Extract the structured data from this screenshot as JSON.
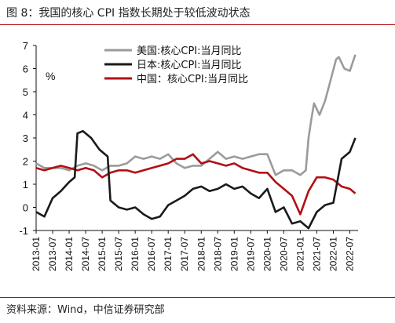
{
  "figure": {
    "title": "图 8：我国的核心 CPI 指数长期处于较低波动状态",
    "source": "资料来源：Wind，中信证券研究部"
  },
  "chart_data": {
    "type": "line",
    "unit_label": "%",
    "ylim": [
      -1,
      7
    ],
    "y_ticks": [
      -1,
      0,
      1,
      2,
      3,
      4,
      5,
      6,
      7
    ],
    "x_range": [
      "2013-01",
      "2022-10"
    ],
    "x_ticks": [
      "2013-01",
      "2013-07",
      "2014-01",
      "2014-07",
      "2015-01",
      "2015-07",
      "2016-01",
      "2016-07",
      "2017-01",
      "2017-07",
      "2018-01",
      "2018-07",
      "2019-01",
      "2019-07",
      "2020-01",
      "2020-07",
      "2021-01",
      "2021-07",
      "2022-01",
      "2022-07"
    ],
    "legend_position": "top-right",
    "grid": false,
    "series": [
      {
        "name": "美国:核心CPI:当月同比",
        "color": "#9b9b9b",
        "points": [
          [
            "2013-01",
            1.9
          ],
          [
            "2013-04",
            1.7
          ],
          [
            "2013-07",
            1.7
          ],
          [
            "2013-10",
            1.7
          ],
          [
            "2014-01",
            1.6
          ],
          [
            "2014-04",
            1.8
          ],
          [
            "2014-07",
            1.9
          ],
          [
            "2014-10",
            1.8
          ],
          [
            "2015-01",
            1.6
          ],
          [
            "2015-04",
            1.8
          ],
          [
            "2015-07",
            1.8
          ],
          [
            "2015-10",
            1.9
          ],
          [
            "2016-01",
            2.2
          ],
          [
            "2016-04",
            2.1
          ],
          [
            "2016-07",
            2.2
          ],
          [
            "2016-10",
            2.1
          ],
          [
            "2017-01",
            2.3
          ],
          [
            "2017-04",
            1.9
          ],
          [
            "2017-07",
            1.7
          ],
          [
            "2017-10",
            1.8
          ],
          [
            "2018-01",
            1.8
          ],
          [
            "2018-04",
            2.1
          ],
          [
            "2018-07",
            2.4
          ],
          [
            "2018-10",
            2.1
          ],
          [
            "2019-01",
            2.2
          ],
          [
            "2019-04",
            2.1
          ],
          [
            "2019-07",
            2.2
          ],
          [
            "2019-10",
            2.3
          ],
          [
            "2020-01",
            2.3
          ],
          [
            "2020-04",
            1.4
          ],
          [
            "2020-07",
            1.6
          ],
          [
            "2020-10",
            1.6
          ],
          [
            "2021-01",
            1.4
          ],
          [
            "2021-03",
            1.6
          ],
          [
            "2021-04",
            3.0
          ],
          [
            "2021-05",
            3.8
          ],
          [
            "2021-06",
            4.5
          ],
          [
            "2021-08",
            4.0
          ],
          [
            "2021-10",
            4.6
          ],
          [
            "2021-12",
            5.5
          ],
          [
            "2022-02",
            6.4
          ],
          [
            "2022-03",
            6.5
          ],
          [
            "2022-05",
            6.0
          ],
          [
            "2022-07",
            5.9
          ],
          [
            "2022-09",
            6.6
          ]
        ]
      },
      {
        "name": "日本:核心CPI:当月同比",
        "color": "#1a1a1a",
        "points": [
          [
            "2013-01",
            -0.2
          ],
          [
            "2013-04",
            -0.4
          ],
          [
            "2013-07",
            0.4
          ],
          [
            "2013-10",
            0.7
          ],
          [
            "2014-01",
            1.1
          ],
          [
            "2014-03",
            1.3
          ],
          [
            "2014-04",
            3.2
          ],
          [
            "2014-06",
            3.3
          ],
          [
            "2014-09",
            3.0
          ],
          [
            "2014-12",
            2.5
          ],
          [
            "2015-03",
            2.2
          ],
          [
            "2015-04",
            0.3
          ],
          [
            "2015-07",
            0.0
          ],
          [
            "2015-10",
            -0.1
          ],
          [
            "2016-01",
            0.0
          ],
          [
            "2016-04",
            -0.3
          ],
          [
            "2016-07",
            -0.5
          ],
          [
            "2016-10",
            -0.4
          ],
          [
            "2017-01",
            0.1
          ],
          [
            "2017-04",
            0.3
          ],
          [
            "2017-07",
            0.5
          ],
          [
            "2017-10",
            0.8
          ],
          [
            "2018-01",
            0.9
          ],
          [
            "2018-04",
            0.7
          ],
          [
            "2018-07",
            0.8
          ],
          [
            "2018-10",
            1.0
          ],
          [
            "2019-01",
            0.8
          ],
          [
            "2019-04",
            0.9
          ],
          [
            "2019-07",
            0.6
          ],
          [
            "2019-10",
            0.4
          ],
          [
            "2020-01",
            0.8
          ],
          [
            "2020-04",
            -0.2
          ],
          [
            "2020-07",
            0.0
          ],
          [
            "2020-10",
            -0.7
          ],
          [
            "2021-01",
            -0.6
          ],
          [
            "2021-04",
            -0.9
          ],
          [
            "2021-07",
            -0.2
          ],
          [
            "2021-10",
            0.1
          ],
          [
            "2022-01",
            0.2
          ],
          [
            "2022-04",
            2.1
          ],
          [
            "2022-07",
            2.4
          ],
          [
            "2022-09",
            3.0
          ]
        ]
      },
      {
        "name": "中国：核心CPI:当月同比",
        "color": "#b10f14",
        "points": [
          [
            "2013-01",
            1.7
          ],
          [
            "2013-04",
            1.6
          ],
          [
            "2013-07",
            1.7
          ],
          [
            "2013-10",
            1.8
          ],
          [
            "2014-01",
            1.7
          ],
          [
            "2014-04",
            1.6
          ],
          [
            "2014-07",
            1.7
          ],
          [
            "2014-10",
            1.6
          ],
          [
            "2015-01",
            1.3
          ],
          [
            "2015-04",
            1.5
          ],
          [
            "2015-07",
            1.6
          ],
          [
            "2015-10",
            1.6
          ],
          [
            "2016-01",
            1.5
          ],
          [
            "2016-04",
            1.6
          ],
          [
            "2016-07",
            1.7
          ],
          [
            "2016-10",
            1.8
          ],
          [
            "2017-01",
            1.9
          ],
          [
            "2017-04",
            2.1
          ],
          [
            "2017-07",
            2.1
          ],
          [
            "2017-10",
            2.3
          ],
          [
            "2018-01",
            1.9
          ],
          [
            "2018-04",
            2.0
          ],
          [
            "2018-07",
            1.9
          ],
          [
            "2018-10",
            1.8
          ],
          [
            "2019-01",
            1.9
          ],
          [
            "2019-04",
            1.7
          ],
          [
            "2019-07",
            1.6
          ],
          [
            "2019-10",
            1.5
          ],
          [
            "2020-01",
            1.5
          ],
          [
            "2020-04",
            1.1
          ],
          [
            "2020-07",
            0.8
          ],
          [
            "2020-10",
            0.5
          ],
          [
            "2021-01",
            -0.3
          ],
          [
            "2021-04",
            0.7
          ],
          [
            "2021-07",
            1.3
          ],
          [
            "2021-10",
            1.3
          ],
          [
            "2022-01",
            1.2
          ],
          [
            "2022-04",
            0.9
          ],
          [
            "2022-07",
            0.8
          ],
          [
            "2022-09",
            0.6
          ]
        ]
      }
    ]
  }
}
